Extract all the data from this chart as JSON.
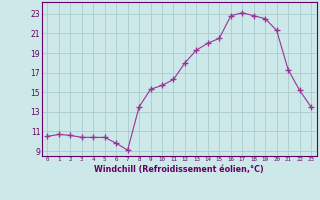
{
  "x": [
    0,
    1,
    2,
    3,
    4,
    5,
    6,
    7,
    8,
    9,
    10,
    11,
    12,
    13,
    14,
    15,
    16,
    17,
    18,
    19,
    20,
    21,
    22,
    23
  ],
  "y": [
    10.5,
    10.7,
    10.6,
    10.4,
    10.4,
    10.4,
    9.8,
    9.1,
    13.5,
    15.3,
    15.7,
    16.3,
    18.0,
    19.3,
    20.0,
    20.5,
    22.8,
    23.1,
    22.8,
    22.5,
    21.3,
    17.3,
    15.2,
    13.5
  ],
  "line_color": "#993399",
  "marker": "+",
  "xlabel": "Windchill (Refroidissement éolien,°C)",
  "ylim": [
    8.5,
    24.2
  ],
  "xlim": [
    -0.5,
    23.5
  ],
  "yticks": [
    9,
    11,
    13,
    15,
    17,
    19,
    21,
    23
  ],
  "xticks": [
    0,
    1,
    2,
    3,
    4,
    5,
    6,
    7,
    8,
    9,
    10,
    11,
    12,
    13,
    14,
    15,
    16,
    17,
    18,
    19,
    20,
    21,
    22,
    23
  ],
  "bg_color": "#cce8e8",
  "grid_color": "#aacccc",
  "label_color": "#660066",
  "tick_color": "#660066",
  "border_color": "#660066",
  "xfontsize": 4.2,
  "yfontsize": 5.5,
  "xlabel_fontsize": 5.8
}
